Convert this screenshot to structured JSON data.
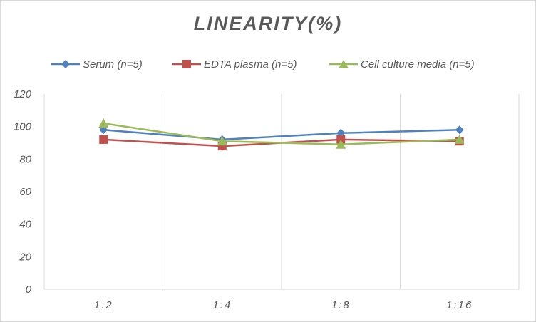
{
  "chart_data": {
    "type": "line",
    "title": "LINEARITY(%)",
    "xlabel": "",
    "ylabel": "",
    "categories": [
      "1:2",
      "1:4",
      "1:8",
      "1:16"
    ],
    "ylim": [
      0,
      120
    ],
    "yticks": [
      0,
      20,
      40,
      60,
      80,
      100,
      120
    ],
    "grid": "vertical",
    "legend_position": "top",
    "series": [
      {
        "name": "Serum (n=5)",
        "values": [
          98,
          92,
          96,
          98
        ],
        "color": "#4f81bd",
        "marker": "diamond"
      },
      {
        "name": "EDTA plasma (n=5)",
        "values": [
          92,
          88,
          92,
          91
        ],
        "color": "#c0504d",
        "marker": "square"
      },
      {
        "name": "Cell culture media (n=5)",
        "values": [
          102,
          91,
          89,
          92
        ],
        "color": "#9bbb59",
        "marker": "triangle"
      }
    ]
  }
}
